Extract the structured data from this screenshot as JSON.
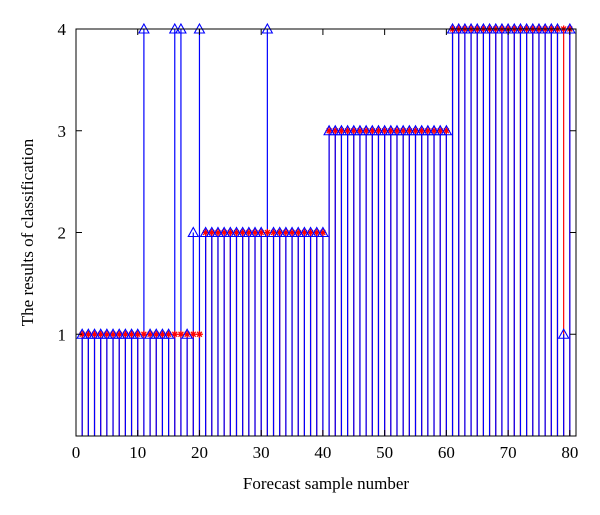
{
  "chart_data": {
    "type": "stem",
    "xlabel": "Forecast sample number",
    "ylabel": "The results of classification",
    "xlim": [
      0,
      81
    ],
    "ylim": [
      0,
      4
    ],
    "x_ticks": [
      0,
      10,
      20,
      30,
      40,
      50,
      60,
      70,
      80
    ],
    "y_ticks": [
      1,
      2,
      3,
      4
    ],
    "grid": false,
    "series": [
      {
        "role": "actual",
        "color": "#ff0000",
        "marker": "star",
        "values": [
          1,
          1,
          1,
          1,
          1,
          1,
          1,
          1,
          1,
          1,
          1,
          1,
          1,
          1,
          1,
          1,
          1,
          1,
          1,
          1,
          2,
          2,
          2,
          2,
          2,
          2,
          2,
          2,
          2,
          2,
          2,
          2,
          2,
          2,
          2,
          2,
          2,
          2,
          2,
          2,
          3,
          3,
          3,
          3,
          3,
          3,
          3,
          3,
          3,
          3,
          3,
          3,
          3,
          3,
          3,
          3,
          3,
          3,
          3,
          3,
          4,
          4,
          4,
          4,
          4,
          4,
          4,
          4,
          4,
          4,
          4,
          4,
          4,
          4,
          4,
          4,
          4,
          4,
          4,
          4
        ]
      },
      {
        "role": "predicted",
        "color": "#0000ff",
        "marker": "triangle",
        "values": [
          1,
          1,
          1,
          1,
          1,
          1,
          1,
          1,
          1,
          1,
          4,
          1,
          1,
          1,
          1,
          4,
          4,
          1,
          2,
          4,
          2,
          2,
          2,
          2,
          2,
          2,
          2,
          2,
          2,
          2,
          4,
          2,
          2,
          2,
          2,
          2,
          2,
          2,
          2,
          2,
          3,
          3,
          3,
          3,
          3,
          3,
          3,
          3,
          3,
          3,
          3,
          3,
          3,
          3,
          3,
          3,
          3,
          3,
          3,
          3,
          4,
          4,
          4,
          4,
          4,
          4,
          4,
          4,
          4,
          4,
          4,
          4,
          4,
          4,
          4,
          4,
          4,
          4,
          1,
          4
        ]
      }
    ]
  }
}
